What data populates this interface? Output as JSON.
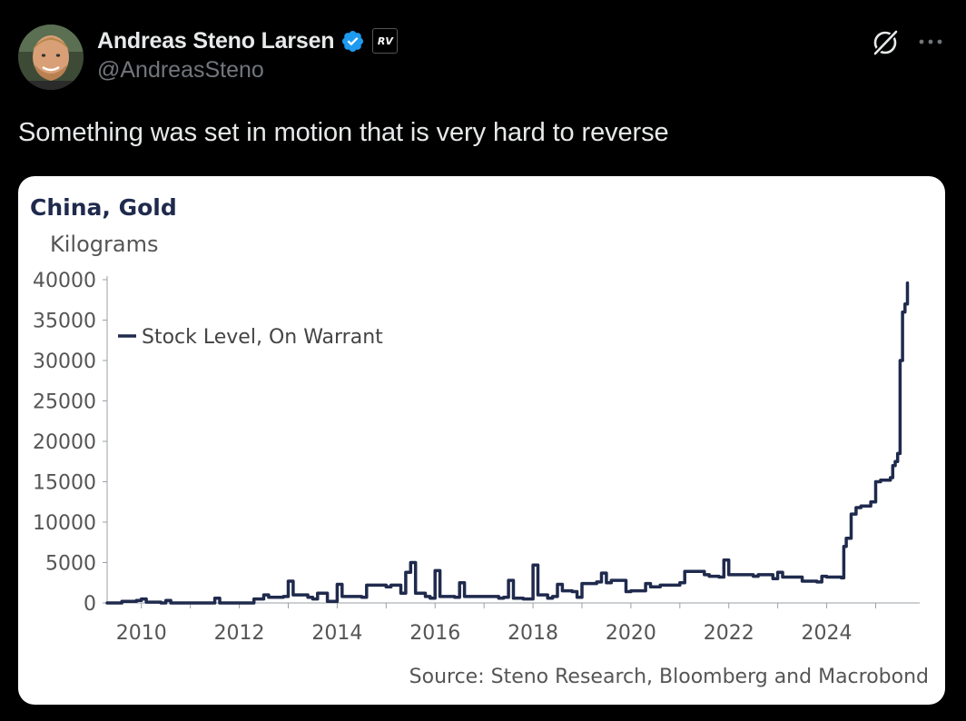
{
  "tweet": {
    "author": {
      "display_name": "Andreas Steno Larsen",
      "handle": "@AndreasSteno",
      "affiliation_badge": "RV"
    },
    "text": "Something was set in motion that is very hard to reverse",
    "icons": {
      "verified": "verified-badge-icon",
      "grok": "grok-icon",
      "more": "more-options-icon"
    },
    "colors": {
      "background": "#000000",
      "name": "#e7e9ea",
      "handle": "#71767b",
      "verified": "#1d9bf0",
      "series": "#1f2a4d"
    }
  },
  "chart_data": {
    "type": "line",
    "title": "China, Gold",
    "ylabel": "Kilograms",
    "source": "Source: Steno Research, Bloomberg and Macrobond",
    "legend": "top-left",
    "ylim": [
      0,
      40000
    ],
    "xlim": [
      2009.3,
      2025.9
    ],
    "x_ticks": [
      "2010",
      "2012",
      "2014",
      "2016",
      "2018",
      "2020",
      "2022",
      "2024"
    ],
    "y_ticks": [
      "40000",
      "35000",
      "30000",
      "25000",
      "20000",
      "15000",
      "10000",
      "5000",
      "0"
    ],
    "grid": false,
    "series": [
      {
        "name": "Stock Level, On Warrant",
        "x": [
          2009.3,
          2009.6,
          2009.9,
          2010.0,
          2010.1,
          2010.4,
          2010.5,
          2010.6,
          2011.0,
          2011.4,
          2011.5,
          2011.6,
          2012.0,
          2012.3,
          2012.5,
          2012.6,
          2012.9,
          2013.0,
          2013.1,
          2013.4,
          2013.5,
          2013.6,
          2013.8,
          2013.9,
          2014.0,
          2014.1,
          2014.5,
          2014.6,
          2015.0,
          2015.1,
          2015.3,
          2015.4,
          2015.5,
          2015.6,
          2015.8,
          2015.9,
          2016.0,
          2016.1,
          2016.3,
          2016.4,
          2016.5,
          2016.6,
          2017.0,
          2017.3,
          2017.4,
          2017.5,
          2017.6,
          2017.8,
          2017.9,
          2018.0,
          2018.1,
          2018.3,
          2018.4,
          2018.5,
          2018.6,
          2018.8,
          2018.9,
          2019.0,
          2019.3,
          2019.4,
          2019.5,
          2019.6,
          2019.9,
          2020.0,
          2020.3,
          2020.4,
          2020.6,
          2020.9,
          2021.0,
          2021.1,
          2021.5,
          2021.6,
          2021.8,
          2021.9,
          2022.0,
          2022.5,
          2022.6,
          2022.9,
          2023.0,
          2023.1,
          2023.5,
          2023.8,
          2023.9,
          2024.0,
          2024.3,
          2024.35,
          2024.4,
          2024.5,
          2024.6,
          2024.7,
          2024.9,
          2025.0,
          2025.1,
          2025.3,
          2025.35,
          2025.4,
          2025.45,
          2025.5,
          2025.55,
          2025.6,
          2025.65
        ],
        "values": [
          0,
          200,
          300,
          500,
          100,
          0,
          300,
          0,
          0,
          0,
          600,
          0,
          0,
          500,
          1000,
          700,
          800,
          2700,
          1000,
          700,
          500,
          1200,
          200,
          200,
          2300,
          800,
          700,
          2200,
          2000,
          2200,
          1200,
          3800,
          5000,
          1200,
          800,
          600,
          4000,
          800,
          800,
          700,
          2500,
          800,
          800,
          600,
          700,
          2800,
          600,
          500,
          500,
          4700,
          1000,
          600,
          800,
          2300,
          1500,
          1400,
          700,
          2400,
          2600,
          3700,
          2500,
          2800,
          1400,
          1500,
          2400,
          2000,
          2200,
          2200,
          2500,
          3900,
          3500,
          3300,
          3200,
          5300,
          3500,
          3300,
          3500,
          3000,
          3800,
          3200,
          2700,
          2600,
          3300,
          3200,
          3100,
          7000,
          8000,
          11000,
          11800,
          12000,
          12500,
          15000,
          15200,
          15500,
          17000,
          17500,
          18500,
          30000,
          36000,
          37000,
          39600
        ]
      }
    ]
  }
}
